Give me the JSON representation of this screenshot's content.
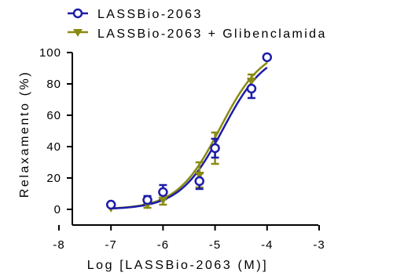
{
  "chart_data": {
    "type": "scatter",
    "xlabel": "Log [LASSBio-2063 (M)]",
    "ylabel": "Relaxamento (%)",
    "xlim": [
      -8,
      -3
    ],
    "ylim": [
      -10,
      100
    ],
    "xticks": [
      "-8",
      "-7",
      "-6",
      "-5",
      "-4",
      "-3"
    ],
    "yticks": [
      "0",
      "20",
      "40",
      "60",
      "80",
      "100"
    ],
    "legend_position": "top-left",
    "series": [
      {
        "name": "LASSBio-2063",
        "color": "#1c1ca8",
        "marker": "open-circle",
        "x": [
          -7,
          -6.3,
          -6,
          -5.3,
          -5,
          -4.3,
          -4
        ],
        "y": [
          3,
          6,
          11,
          18,
          39,
          77,
          97
        ],
        "error": [
          0,
          2.5,
          4.5,
          5,
          6,
          6,
          0
        ],
        "fit": {
          "bottom": 0,
          "top": 102,
          "logEC50": -4.85,
          "hill": 1.05
        }
      },
      {
        "name": "LASSBio-2063 + Glibenclamida",
        "color": "#8a8a12",
        "marker": "filled-triangle-down",
        "x": [
          -7,
          -6.3,
          -6,
          -5.3,
          -5,
          -4.3,
          -4
        ],
        "y": [
          1,
          3,
          6,
          22,
          39,
          82,
          96
        ],
        "error": [
          0,
          2,
          3,
          8,
          10,
          4,
          0
        ],
        "fit": {
          "bottom": 0,
          "top": 104,
          "logEC50": -4.9,
          "hill": 1.05
        }
      }
    ]
  }
}
